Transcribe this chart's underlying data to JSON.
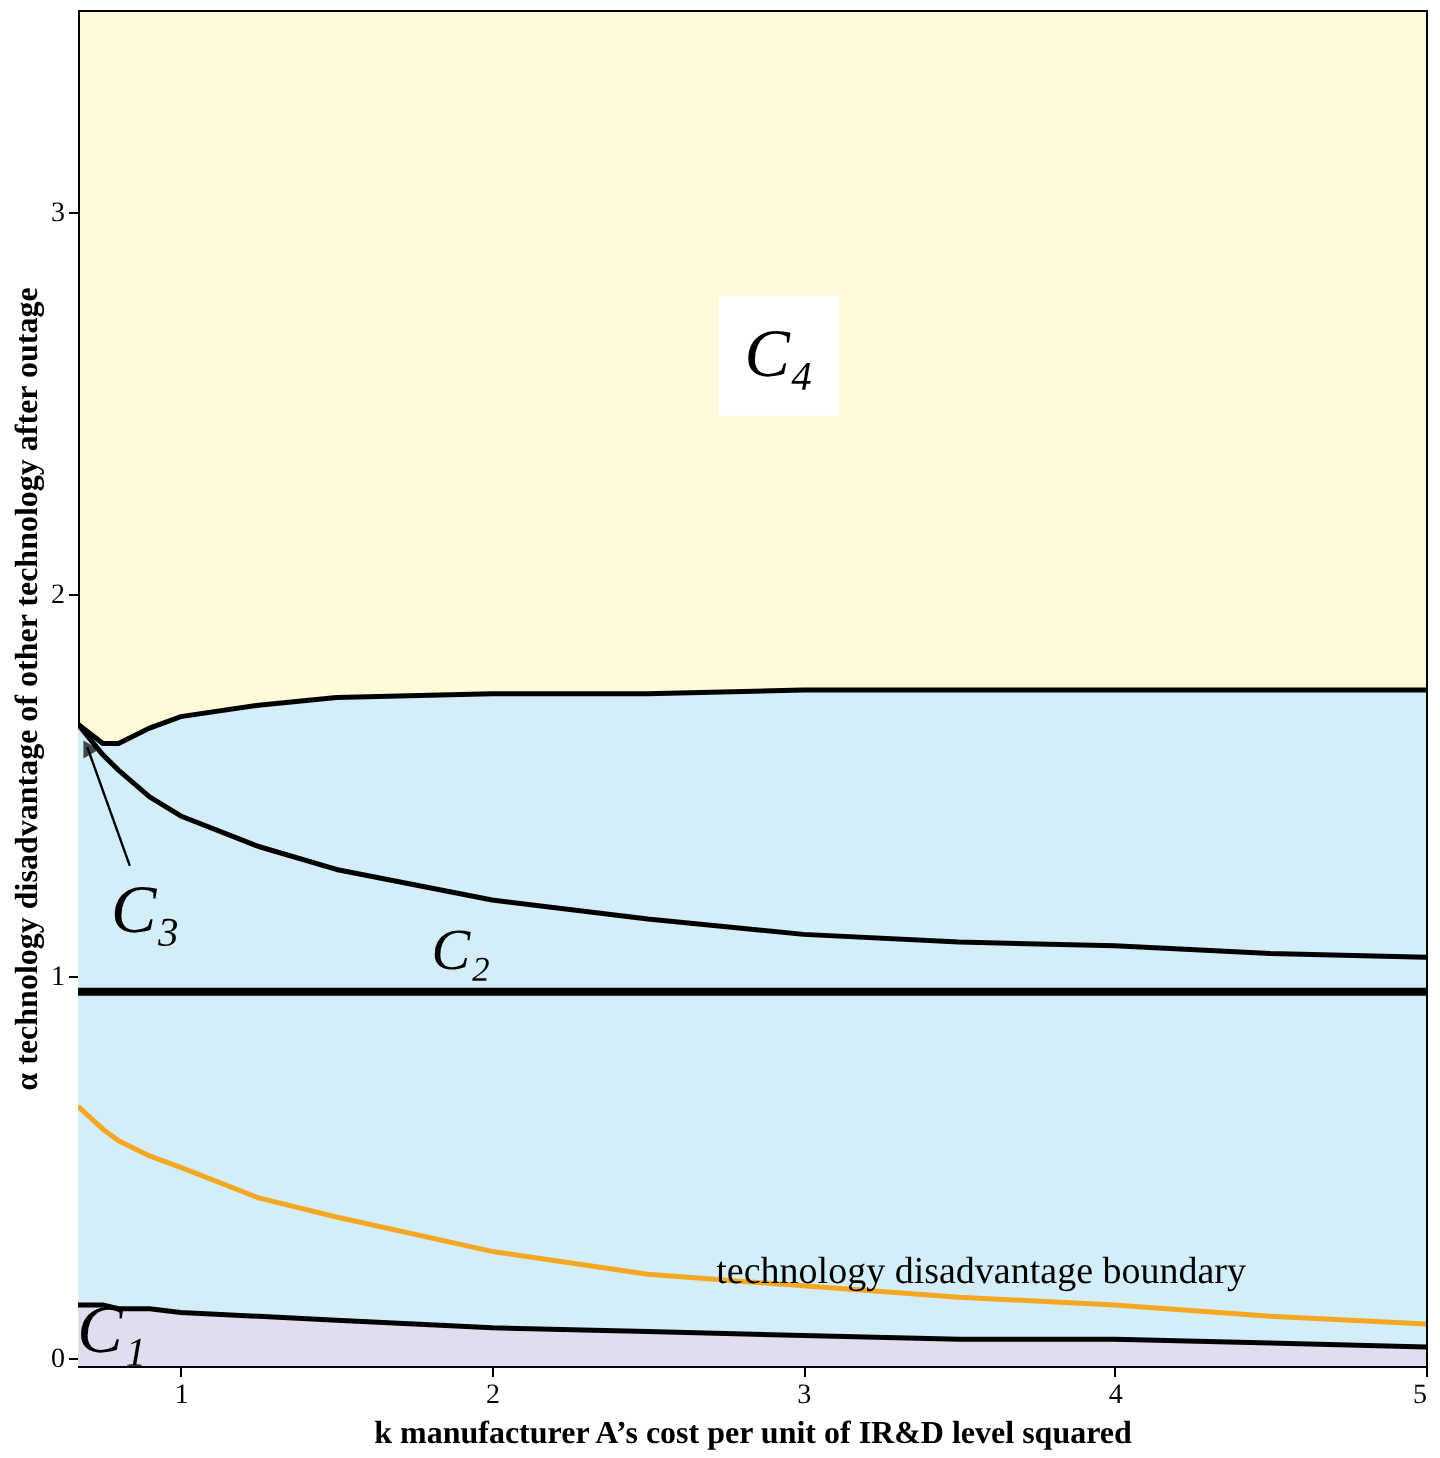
{
  "chart_data": {
    "type": "line",
    "xlabel": "k  manufacturer A’s cost per unit of IR&D level squared",
    "ylabel": "α  technology disadvantage of other technology after outage",
    "x": [
      0.67,
      0.75,
      0.8,
      0.9,
      1,
      1.25,
      1.5,
      2,
      2.5,
      3,
      3.5,
      4,
      4.5,
      5
    ],
    "series": [
      {
        "type": "area",
        "color": "#d3eef8",
        "values": [
          1.66,
          1.61,
          1.61,
          1.65,
          1.68,
          1.71,
          1.73,
          1.74,
          1.74,
          1.75,
          1.75,
          1.75,
          1.75,
          1.75
        ]
      },
      {
        "type": "area",
        "color": "#e2dcef",
        "values": [
          0.14,
          0.14,
          0.13,
          0.13,
          0.12,
          0.11,
          0.1,
          0.08,
          0.07,
          0.06,
          0.05,
          0.05,
          0.04,
          0.03
        ]
      },
      {
        "color": "#000000",
        "values": [
          1.66,
          1.58,
          1.54,
          1.47,
          1.42,
          1.34,
          1.28,
          1.2,
          1.15,
          1.11,
          1.09,
          1.08,
          1.06,
          1.05
        ]
      },
      {
        "color": "#f5a623",
        "values": [
          0.66,
          0.6,
          0.57,
          0.53,
          0.5,
          0.42,
          0.37,
          0.28,
          0.22,
          0.19,
          0.16,
          0.14,
          0.11,
          0.09
        ]
      }
    ],
    "ref_lines": [
      {
        "axis": "y",
        "value": 0.96,
        "color": "#000000"
      }
    ],
    "annotations": [
      "C₄",
      "C₂",
      {
        "text": "C₃",
        "x": 0.7,
        "y": 1.6
      },
      "C₁",
      "technology disadvantage boundary"
    ],
    "xlim": [
      0.67,
      5.0
    ],
    "ylim": [
      -0.02,
      3.53
    ],
    "xticks": [
      1,
      2,
      3,
      4,
      5
    ],
    "yticks": [
      0,
      1,
      2,
      3
    ],
    "grid": false,
    "marker": "none",
    "line_style": "solid"
  }
}
